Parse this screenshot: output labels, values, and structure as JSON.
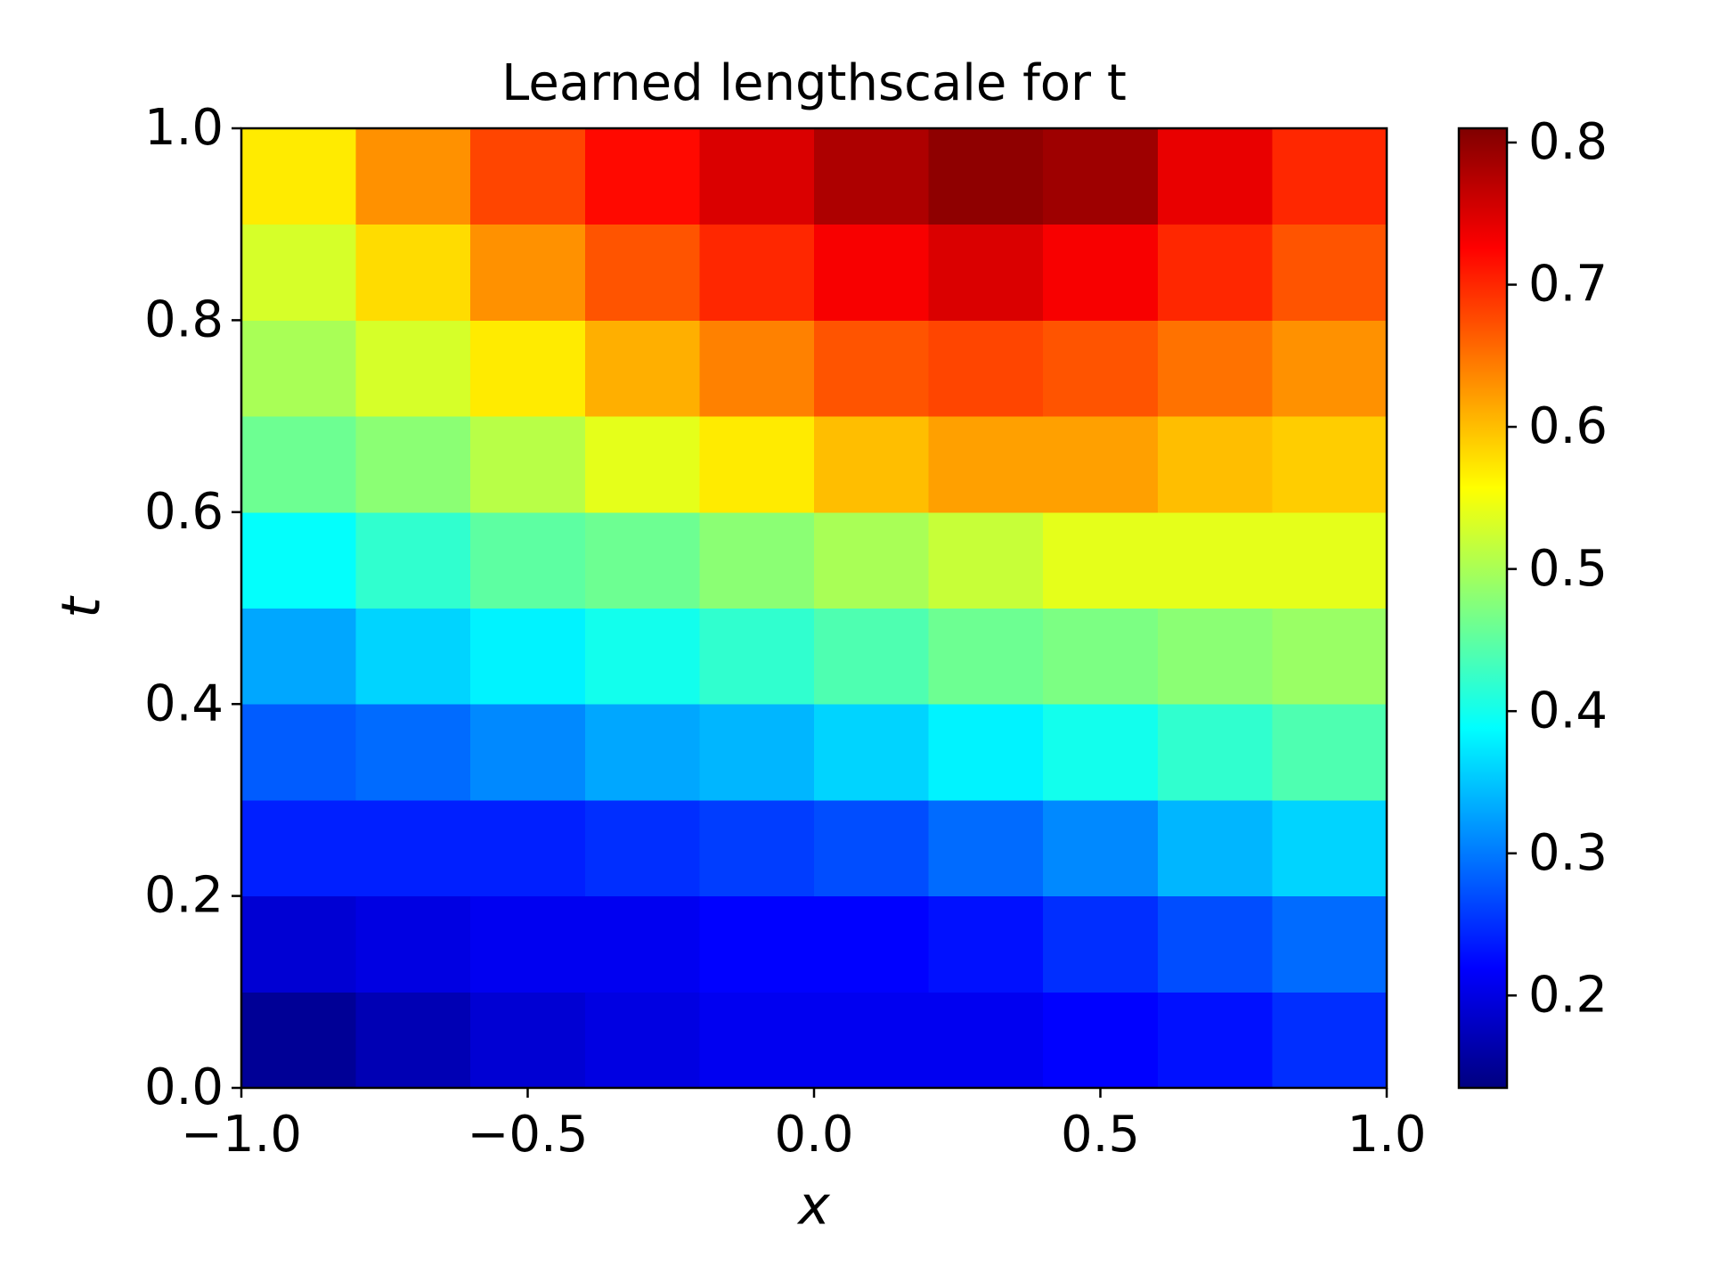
{
  "chart_data": {
    "type": "heatmap",
    "title": "Learned lengthscale for t",
    "x_label": "x",
    "y_label": "t",
    "colormap": "jet",
    "x": [
      -0.9,
      -0.7,
      -0.5,
      -0.3,
      -0.1,
      0.1,
      0.3,
      0.5,
      0.7,
      0.9
    ],
    "y": [
      0.05,
      0.15,
      0.25,
      0.35,
      0.45,
      0.55,
      0.65,
      0.75,
      0.85,
      0.95
    ],
    "z": [
      [
        0.15,
        0.17,
        0.19,
        0.2,
        0.21,
        0.21,
        0.21,
        0.22,
        0.23,
        0.25
      ],
      [
        0.19,
        0.2,
        0.21,
        0.21,
        0.22,
        0.22,
        0.23,
        0.25,
        0.27,
        0.29
      ],
      [
        0.24,
        0.24,
        0.24,
        0.25,
        0.26,
        0.27,
        0.29,
        0.31,
        0.34,
        0.36
      ],
      [
        0.28,
        0.29,
        0.31,
        0.33,
        0.34,
        0.36,
        0.38,
        0.4,
        0.42,
        0.44
      ],
      [
        0.33,
        0.36,
        0.38,
        0.4,
        0.42,
        0.44,
        0.46,
        0.47,
        0.48,
        0.49
      ],
      [
        0.39,
        0.42,
        0.45,
        0.46,
        0.48,
        0.5,
        0.52,
        0.54,
        0.54,
        0.54
      ],
      [
        0.46,
        0.48,
        0.51,
        0.54,
        0.57,
        0.6,
        0.62,
        0.62,
        0.6,
        0.59
      ],
      [
        0.5,
        0.53,
        0.57,
        0.61,
        0.64,
        0.67,
        0.68,
        0.67,
        0.65,
        0.63
      ],
      [
        0.53,
        0.58,
        0.63,
        0.67,
        0.7,
        0.73,
        0.75,
        0.73,
        0.7,
        0.67
      ],
      [
        0.57,
        0.63,
        0.68,
        0.72,
        0.75,
        0.78,
        0.8,
        0.79,
        0.74,
        0.7
      ]
    ],
    "xlim": [
      -1,
      1
    ],
    "ylim": [
      0,
      1
    ],
    "xticks": [
      {
        "value": -1,
        "label": "−1.0"
      },
      {
        "value": -0.5,
        "label": "−0.5"
      },
      {
        "value": 0,
        "label": "0.0"
      },
      0.5,
      {
        "value": 1,
        "label": "1.0"
      }
    ],
    "yticks": [
      {
        "value": 0,
        "label": "0.0"
      },
      0.2,
      0.4,
      0.6,
      0.8,
      {
        "value": 1,
        "label": "1.0"
      }
    ],
    "clim": [
      0.135,
      0.81
    ],
    "cticks": [
      0.2,
      0.3,
      0.4,
      0.5,
      0.6,
      0.7,
      0.8
    ]
  }
}
